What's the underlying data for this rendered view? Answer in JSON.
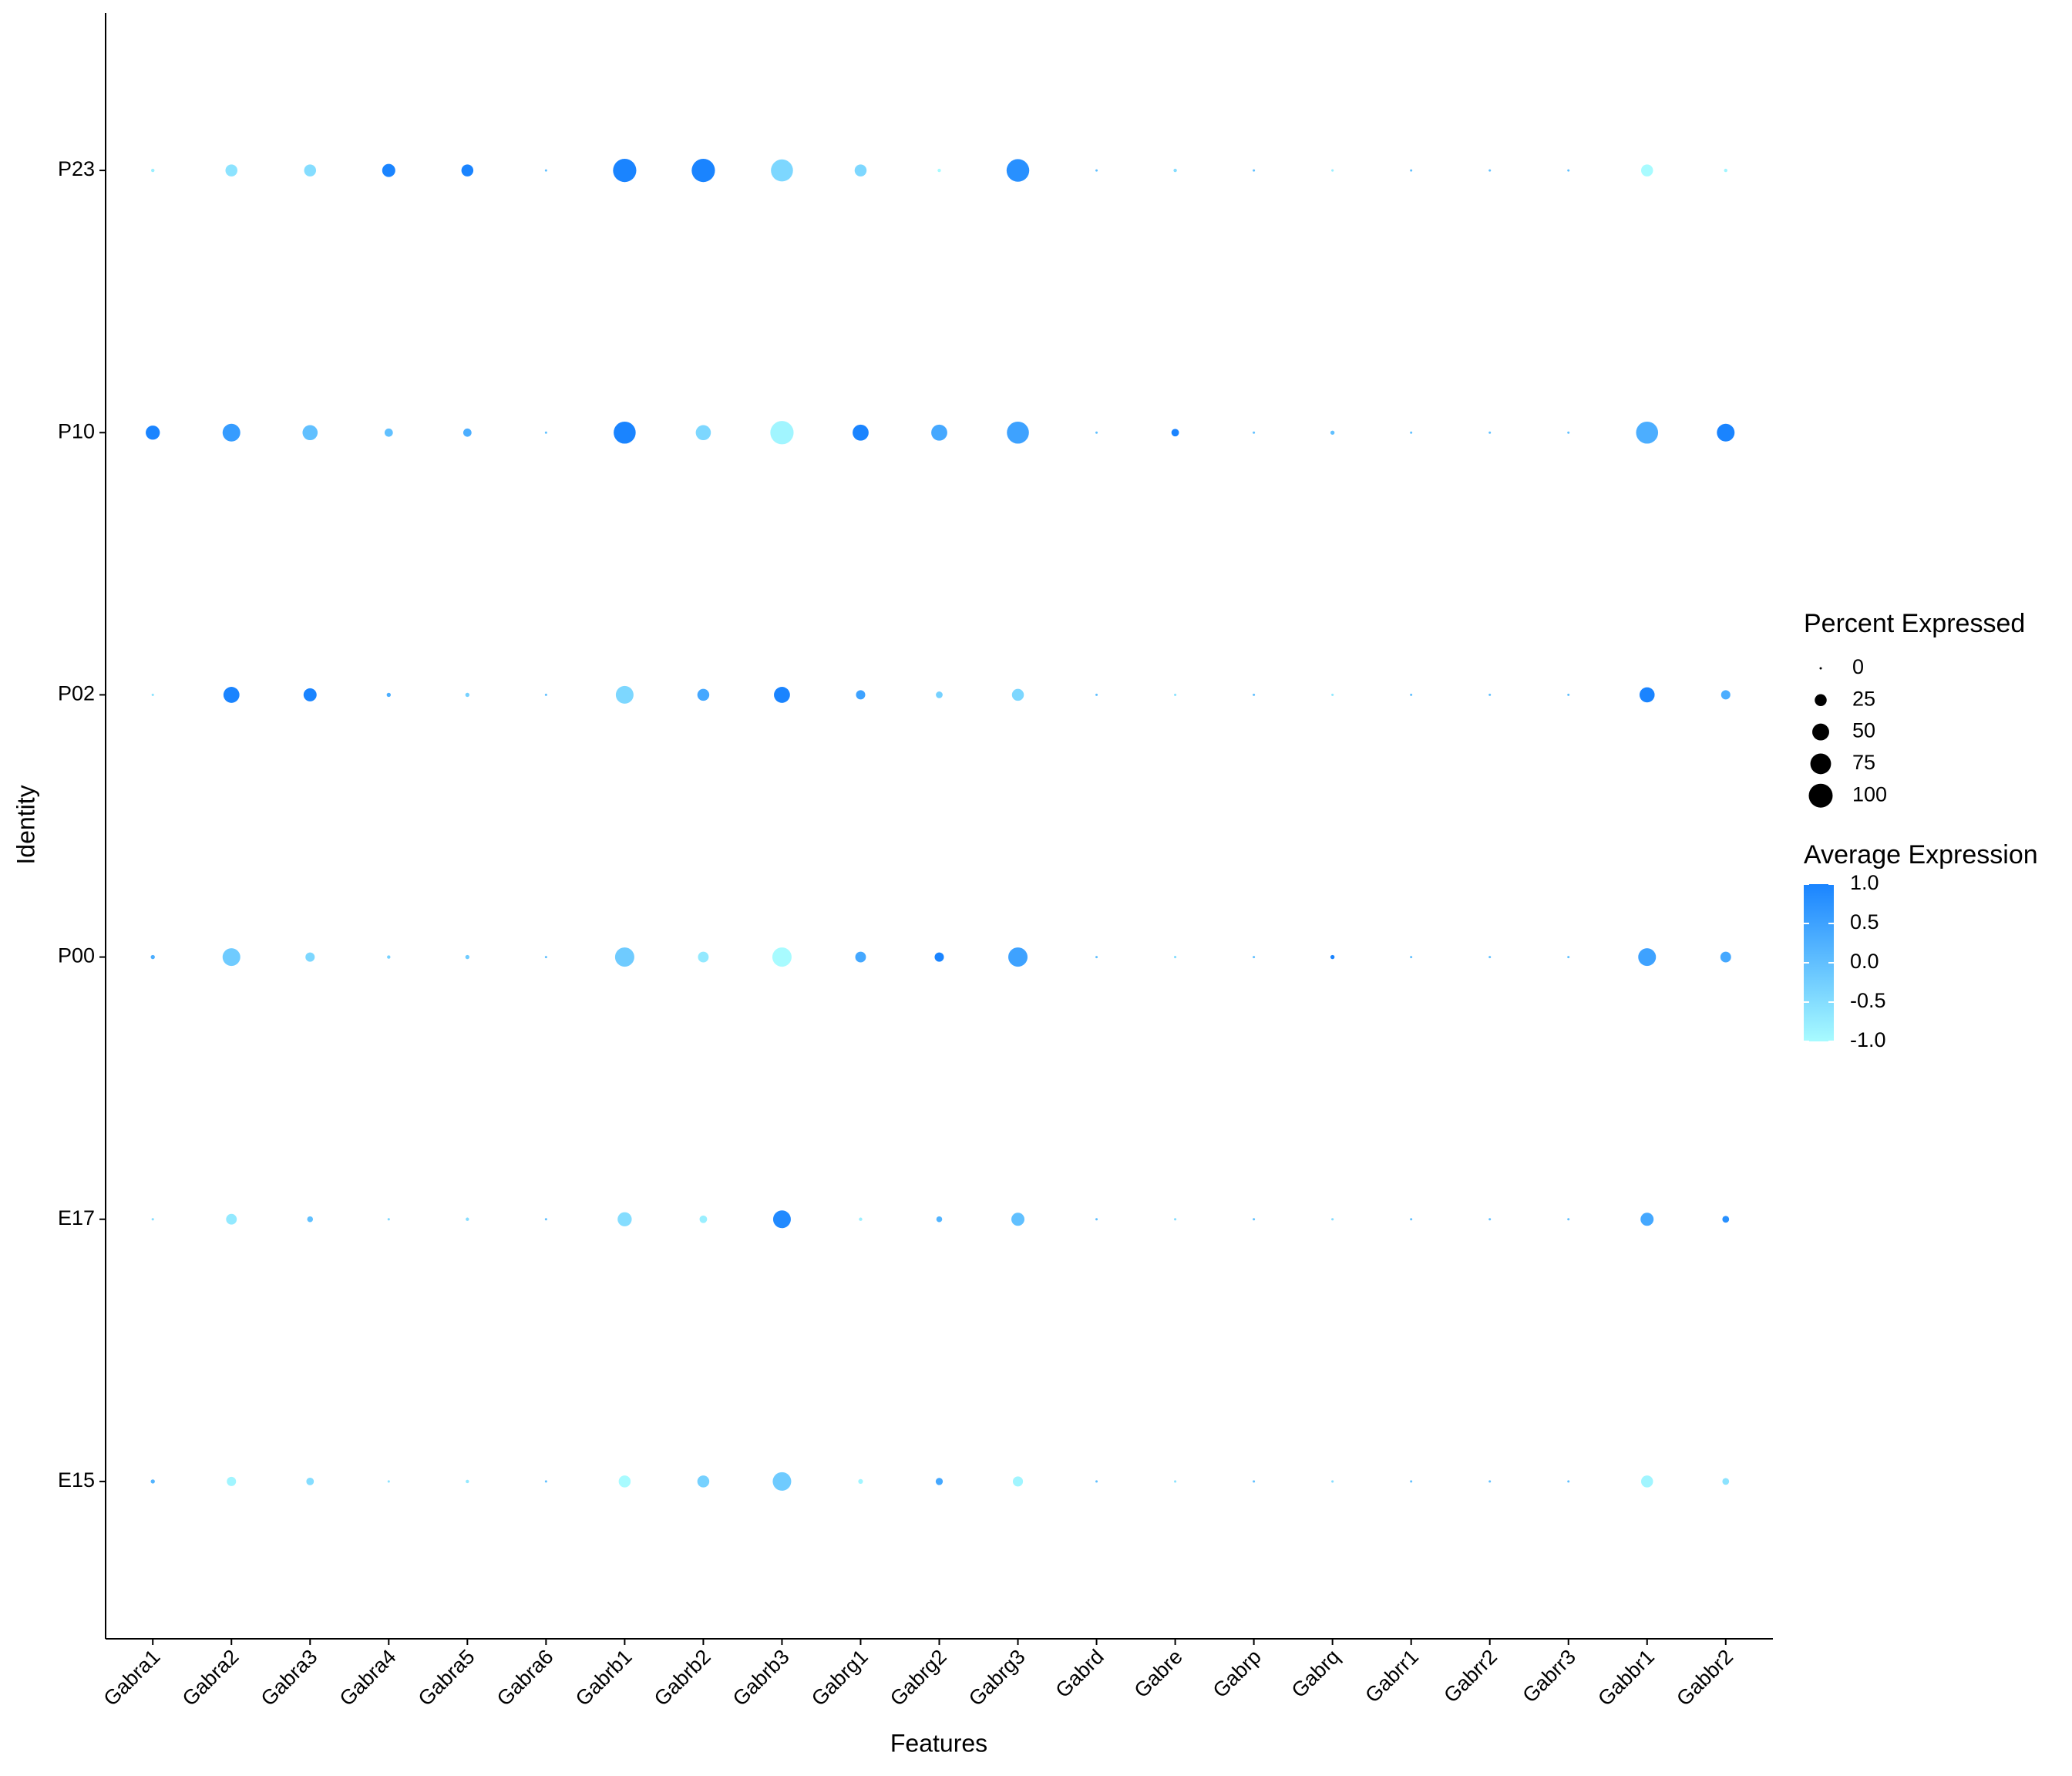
{
  "chart_data": {
    "type": "dotplot",
    "x_label": "Features",
    "y_label": "Identity",
    "x": [
      "Gabra1",
      "Gabra2",
      "Gabra3",
      "Gabra4",
      "Gabra5",
      "Gabra6",
      "Gabrb1",
      "Gabrb2",
      "Gabrb3",
      "Gabrg1",
      "Gabrg2",
      "Gabrg3",
      "Gabrd",
      "Gabre",
      "Gabrp",
      "Gabrq",
      "Gabrr1",
      "Gabrr2",
      "Gabrr3",
      "Gabbr1",
      "Gabbr2"
    ],
    "rows": [
      {
        "name": "E15",
        "pct": [
          3,
          15,
          10,
          1,
          2,
          0,
          25,
          25,
          60,
          4,
          9,
          18,
          0,
          1,
          0,
          1,
          0,
          0,
          0,
          25,
          8
        ],
        "avg": [
          0.2,
          -0.9,
          -0.5,
          -0.6,
          -0.7,
          0,
          -1,
          -0.3,
          -0.2,
          -0.9,
          0.4,
          -0.9,
          0,
          -0.6,
          0,
          -0.5,
          0,
          0,
          0,
          -0.9,
          -0.6
        ]
      },
      {
        "name": "E17",
        "pct": [
          1,
          20,
          6,
          1,
          2,
          0,
          35,
          10,
          55,
          2,
          6,
          30,
          0,
          1,
          0,
          1,
          0,
          0,
          0,
          30,
          8
        ],
        "avg": [
          -0.5,
          -0.7,
          0,
          -0.4,
          -0.5,
          0,
          -0.5,
          -0.8,
          0.9,
          -0.8,
          0.2,
          0,
          0,
          -0.5,
          0,
          -0.5,
          0,
          0,
          0,
          0.4,
          0.8
        ]
      },
      {
        "name": "P00",
        "pct": [
          3,
          55,
          15,
          2,
          3,
          0,
          65,
          20,
          65,
          20,
          15,
          65,
          0,
          1,
          0,
          3,
          0,
          0,
          0,
          55,
          20
        ],
        "avg": [
          0.3,
          -0.2,
          -0.4,
          -0.3,
          -0.2,
          0,
          -0.2,
          -0.7,
          -1,
          0.4,
          1,
          0.5,
          0,
          -0.5,
          0,
          1,
          0,
          0,
          0,
          0.5,
          0.4
        ]
      },
      {
        "name": "P02",
        "pct": [
          1,
          45,
          30,
          3,
          3,
          0,
          55,
          25,
          45,
          15,
          8,
          25,
          0,
          1,
          0,
          1,
          0,
          0,
          0,
          40,
          15
        ],
        "avg": [
          -0.6,
          1,
          1,
          0.3,
          -0.3,
          0,
          -0.4,
          0.4,
          1,
          0.5,
          -0.3,
          -0.4,
          0,
          -0.6,
          0,
          -0.7,
          0,
          0,
          0,
          1,
          0.3
        ]
      },
      {
        "name": "P10",
        "pct": [
          35,
          55,
          40,
          12,
          12,
          0,
          85,
          40,
          95,
          45,
          45,
          85,
          0,
          10,
          0,
          3,
          0,
          0,
          0,
          85,
          55
        ],
        "avg": [
          1,
          0.6,
          0,
          0,
          0.3,
          0,
          1,
          -0.4,
          -0.9,
          1,
          0.4,
          0.5,
          0,
          1,
          0,
          0,
          0,
          0,
          0,
          0.3,
          1
        ]
      },
      {
        "name": "P23",
        "pct": [
          2,
          25,
          25,
          30,
          25,
          0,
          95,
          95,
          85,
          25,
          2,
          90,
          0,
          2,
          0,
          1,
          0,
          0,
          0,
          25,
          2
        ],
        "avg": [
          -0.8,
          -0.6,
          -0.5,
          1,
          1,
          0,
          1,
          1,
          -0.4,
          -0.4,
          -1,
          0.8,
          0,
          -0.5,
          0,
          -0.8,
          0,
          0,
          0,
          -1,
          -0.9
        ]
      }
    ],
    "size_legend": {
      "title": "Percent Expressed",
      "ticks": [
        0,
        25,
        50,
        75,
        100
      ],
      "color": "#000000"
    },
    "color_legend": {
      "title": "Average Expression",
      "lim": [
        -1,
        1
      ],
      "low": "#a8fbff",
      "high": "#1a84ff",
      "ticks": [
        {
          "value": 1,
          "label": "1.0"
        },
        0.5,
        {
          "value": 0,
          "label": "0.0"
        },
        -0.5,
        {
          "value": -1,
          "label": "-1.0"
        }
      ]
    }
  }
}
